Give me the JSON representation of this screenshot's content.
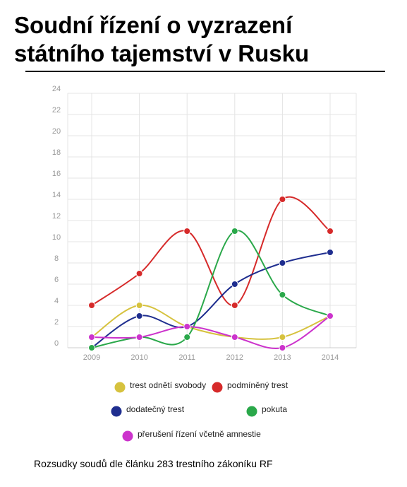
{
  "chart_data": {
    "type": "line",
    "title": "Soudní řízení o vyzrazení státního tajemství v Rusku",
    "caption": "Rozsudky soudů dle článku 283 trestního zákoníku RF",
    "categories": [
      "2009",
      "2010",
      "2011",
      "2012",
      "2013",
      "2014"
    ],
    "series": [
      {
        "name": "trest odnětí svobody",
        "color": "#d6c23e",
        "values": [
          1,
          4,
          2,
          1,
          1,
          3
        ]
      },
      {
        "name": "podmíněný trest",
        "color": "#d62a2a",
        "values": [
          4,
          7,
          11,
          4,
          14,
          11
        ]
      },
      {
        "name": "dodatečný trest",
        "color": "#1f2e8f",
        "values": [
          0,
          3,
          2,
          6,
          8,
          9
        ]
      },
      {
        "name": "pokuta",
        "color": "#2aa84a",
        "values": [
          0,
          1,
          1,
          11,
          5,
          3
        ]
      },
      {
        "name": "přerušení řízení včetně amnestie",
        "color": "#cc33cc",
        "values": [
          1,
          1,
          2,
          1,
          0,
          3
        ]
      }
    ],
    "ylim": [
      0,
      24
    ],
    "yticks": [
      0,
      2,
      4,
      6,
      8,
      10,
      12,
      14,
      16,
      18,
      20,
      22,
      24
    ],
    "grid": true,
    "smooth": true
  }
}
